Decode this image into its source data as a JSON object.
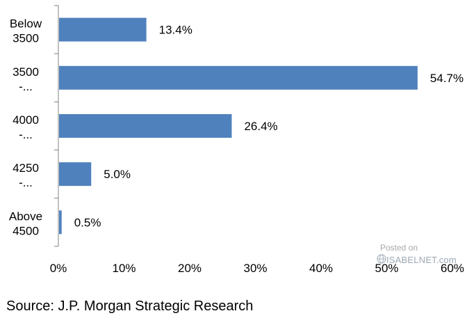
{
  "chart_data": {
    "type": "bar",
    "orientation": "horizontal",
    "categories": [
      [
        "Below",
        "3500"
      ],
      [
        "3500",
        "-..."
      ],
      [
        "4000",
        "-..."
      ],
      [
        "4250",
        "-..."
      ],
      [
        "Above",
        "4500"
      ]
    ],
    "values": [
      13.4,
      54.7,
      26.4,
      5.0,
      0.5
    ],
    "value_labels": [
      "13.4%",
      "54.7%",
      "26.4%",
      "5.0%",
      "0.5%"
    ],
    "xlim": [
      0,
      60
    ],
    "xticks": [
      0,
      10,
      20,
      30,
      40,
      50,
      60
    ],
    "xtick_labels": [
      "0%",
      "10%",
      "20%",
      "30%",
      "40%",
      "50%",
      "60%"
    ],
    "title": "",
    "xlabel": "",
    "ylabel": "",
    "grid": false,
    "bar_color": "#4f81bd"
  },
  "source": "Source: J.P. Morgan Strategic Research",
  "watermark": {
    "line1": "Posted on",
    "line2": "ISABELNET.com"
  }
}
